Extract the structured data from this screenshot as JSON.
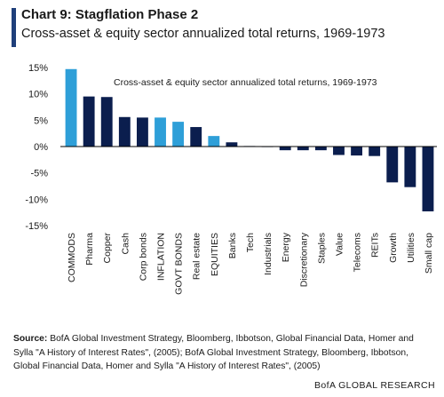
{
  "header": {
    "title": "Chart 9: Stagflation Phase 2",
    "subtitle": "Cross-asset & equity sector annualized total returns, 1969-1973"
  },
  "chart_data": {
    "type": "bar",
    "title": "Cross-asset & equity sector annualized total returns, 1969-1973",
    "categories": [
      "COMMODS",
      "Pharma",
      "Copper",
      "Cash",
      "Corp bonds",
      "INFLATION",
      "GOVT BONDS",
      "Real estate",
      "EQUITIES",
      "Banks",
      "Tech",
      "Industrials",
      "Energy",
      "Discretionary",
      "Staples",
      "Value",
      "Telecoms",
      "REITs",
      "Growth",
      "Utilities",
      "Small cap"
    ],
    "values": [
      14.7,
      9.5,
      9.4,
      5.6,
      5.5,
      5.5,
      4.7,
      3.7,
      2.0,
      0.8,
      0.1,
      -0.1,
      -0.7,
      -0.7,
      -0.7,
      -1.6,
      -1.7,
      -1.8,
      -6.8,
      -7.7,
      -12.3
    ],
    "highlight": [
      "COMMODS",
      "INFLATION",
      "GOVT BONDS",
      "EQUITIES"
    ],
    "ylim": [
      -15,
      15
    ],
    "yticks": [
      15,
      10,
      5,
      0,
      -5,
      -10,
      -15
    ],
    "ytick_labels": [
      "15%",
      "10%",
      "5%",
      "0%",
      "-5%",
      "-10%",
      "-15%"
    ],
    "grid": false,
    "colors": {
      "default": "#0b1e4e",
      "highlight": "#2e9fd8",
      "axis": "#000000"
    }
  },
  "footer": {
    "source_label": "Source:",
    "source_text": " BofA Global Investment Strategy, Bloomberg, Ibbotson,  Global Financial Data, Homer and Sylla \"A History of Interest Rates\", (2005); BofA Global Investment Strategy, Bloomberg, Ibbotson, Global Financial Data, Homer and Sylla \"A History of Interest Rates\", (2005)",
    "brand": "BofA GLOBAL RESEARCH"
  }
}
